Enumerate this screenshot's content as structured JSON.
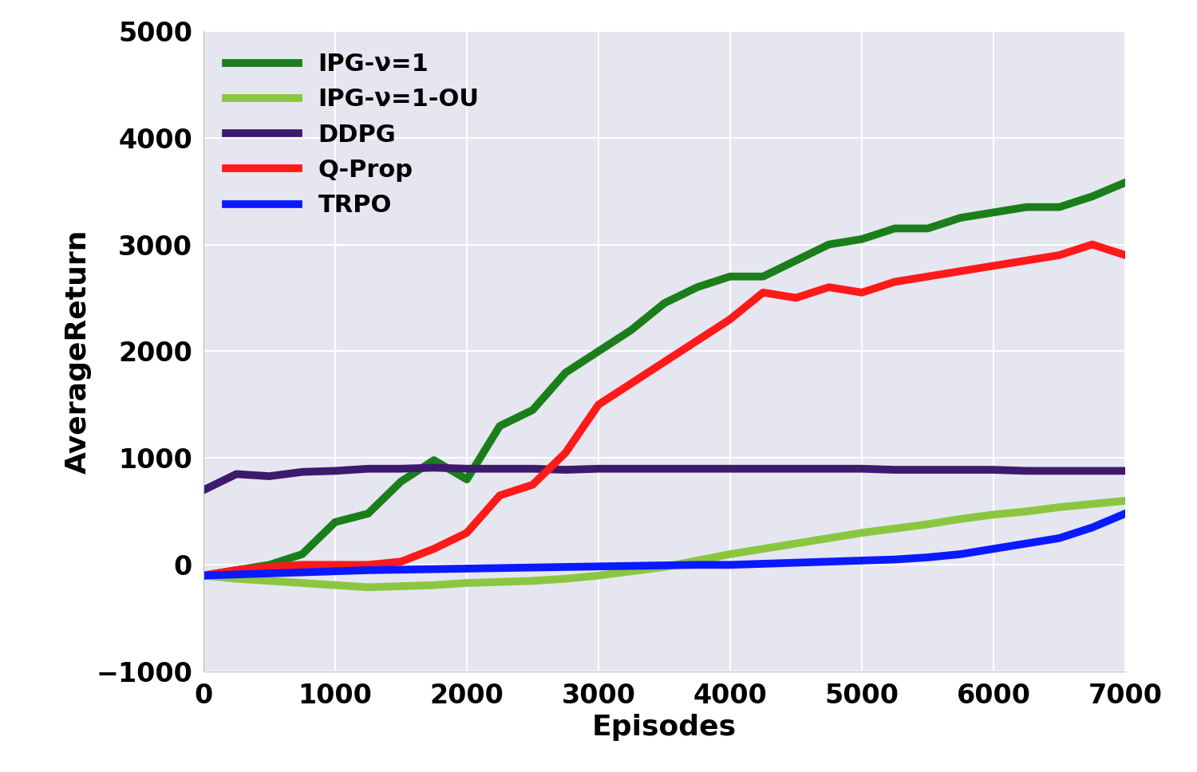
{
  "chart_data": {
    "type": "line",
    "x_label": "Episodes",
    "y_label": "AverageReturn",
    "x": [
      0,
      250,
      500,
      750,
      1000,
      1250,
      1500,
      1750,
      2000,
      2250,
      2500,
      2750,
      3000,
      3250,
      3500,
      3750,
      4000,
      4250,
      4500,
      4750,
      5000,
      5250,
      5500,
      5750,
      6000,
      6250,
      6500,
      6750,
      7000
    ],
    "series": [
      {
        "name": "IPG-ν=1",
        "color": "#1a7f1a",
        "values": [
          -100,
          -50,
          0,
          100,
          400,
          480,
          780,
          980,
          800,
          1300,
          1450,
          1800,
          2000,
          2200,
          2450,
          2600,
          2700,
          2700,
          2850,
          3000,
          3050,
          3150,
          3150,
          3250,
          3300,
          3350,
          3350,
          3450,
          3580
        ]
      },
      {
        "name": "IPG-ν=1-OU",
        "color": "#8cc63f",
        "values": [
          -100,
          -130,
          -150,
          -170,
          -190,
          -210,
          -200,
          -190,
          -170,
          -160,
          -150,
          -130,
          -100,
          -60,
          -20,
          40,
          100,
          150,
          200,
          250,
          300,
          340,
          380,
          430,
          470,
          500,
          540,
          570,
          600
        ]
      },
      {
        "name": "DDPG",
        "color": "#3d1a6e",
        "values": [
          700,
          850,
          830,
          870,
          880,
          900,
          900,
          910,
          900,
          900,
          900,
          890,
          900,
          900,
          900,
          900,
          900,
          900,
          900,
          900,
          900,
          890,
          890,
          890,
          890,
          880,
          880,
          880,
          880
        ]
      },
      {
        "name": "Q-Prop",
        "color": "#ff1a1a",
        "values": [
          -100,
          -50,
          -20,
          0,
          0,
          0,
          30,
          150,
          300,
          650,
          750,
          1050,
          1500,
          1700,
          1900,
          2100,
          2300,
          2550,
          2500,
          2600,
          2550,
          2650,
          2700,
          2750,
          2800,
          2850,
          2900,
          3000,
          2900
        ]
      },
      {
        "name": "TRPO",
        "color": "#0a1aff",
        "values": [
          -100,
          -90,
          -80,
          -70,
          -60,
          -50,
          -45,
          -40,
          -35,
          -30,
          -25,
          -20,
          -15,
          -10,
          -5,
          0,
          0,
          10,
          20,
          30,
          40,
          50,
          70,
          100,
          150,
          200,
          250,
          350,
          480
        ]
      }
    ],
    "xlim": [
      0,
      7000
    ],
    "xticks": [
      0,
      1000,
      2000,
      3000,
      4000,
      5000,
      6000,
      7000
    ],
    "ylim": [
      -1000,
      5000
    ],
    "yticks": [
      {
        "value": -1000,
        "label": "−1000"
      },
      0,
      1000,
      2000,
      3000,
      4000,
      5000
    ],
    "grid": true,
    "legend": "upper left"
  }
}
